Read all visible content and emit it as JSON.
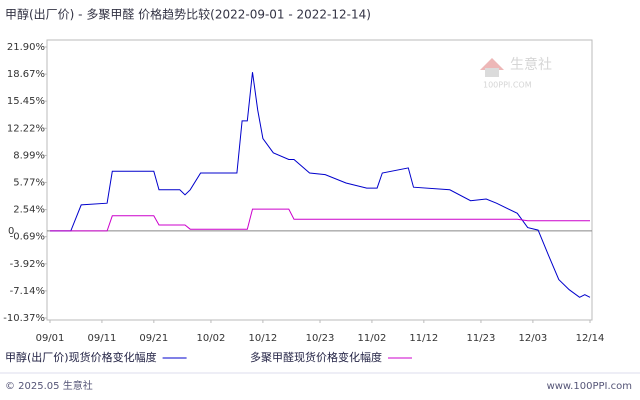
{
  "chart_data": {
    "type": "line",
    "title": "甲醇(出厂价) - 多聚甲醛 价格趋势比较(2022-09-01 - 2022-12-14)",
    "x": [
      "2022-09-01",
      "2022-09-05",
      "2022-09-07",
      "2022-09-12",
      "2022-09-13",
      "2022-09-21",
      "2022-09-22",
      "2022-09-26",
      "2022-09-27",
      "2022-09-28",
      "2022-09-30",
      "2022-10-07",
      "2022-10-08",
      "2022-10-09",
      "2022-10-10",
      "2022-10-11",
      "2022-10-12",
      "2022-10-14",
      "2022-10-17",
      "2022-10-18",
      "2022-10-21",
      "2022-10-24",
      "2022-10-28",
      "2022-11-01",
      "2022-11-03",
      "2022-11-04",
      "2022-11-09",
      "2022-11-10",
      "2022-11-17",
      "2022-11-21",
      "2022-11-24",
      "2022-11-26",
      "2022-11-30",
      "2022-12-02",
      "2022-12-04",
      "2022-12-06",
      "2022-12-08",
      "2022-12-10",
      "2022-12-12",
      "2022-12-13",
      "2022-12-14"
    ],
    "series": [
      {
        "name": "甲醇(出厂价)现货价格变化幅度",
        "color": "#0000cc",
        "values": [
          0,
          0,
          3.1,
          3.3,
          7.1,
          7.1,
          4.9,
          4.9,
          4.3,
          4.9,
          6.9,
          6.9,
          13.1,
          13.1,
          18.9,
          14.4,
          11.0,
          9.3,
          8.5,
          8.5,
          6.9,
          6.7,
          5.7,
          5.1,
          5.1,
          6.9,
          7.5,
          5.2,
          4.9,
          3.6,
          3.8,
          3.3,
          2.1,
          0.4,
          0.1,
          -2.9,
          -5.8,
          -7.0,
          -7.9,
          -7.6,
          -7.9
        ]
      },
      {
        "name": "多聚甲醛现货价格变化幅度",
        "color": "#cc00cc",
        "values": [
          0,
          0,
          0,
          0,
          1.8,
          1.8,
          0.7,
          0.7,
          0.7,
          0.2,
          0.2,
          0.2,
          0.2,
          0.2,
          2.6,
          2.6,
          2.6,
          2.6,
          2.6,
          1.4,
          1.4,
          1.4,
          1.4,
          1.4,
          1.4,
          1.4,
          1.4,
          1.4,
          1.4,
          1.4,
          1.4,
          1.4,
          1.4,
          1.2,
          1.2,
          1.2,
          1.2,
          1.2,
          1.2,
          1.2,
          1.2
        ]
      }
    ],
    "xlim": [
      "2022-09-01",
      "2022-12-14"
    ],
    "xticks": [
      {
        "value": "2022-09-01",
        "label": "09/01"
      },
      {
        "value": "2022-09-11",
        "label": "09/11"
      },
      {
        "value": "2022-09-21",
        "label": "09/21"
      },
      {
        "value": "2022-10-02",
        "label": "10/02"
      },
      {
        "value": "2022-10-12",
        "label": "10/12"
      },
      {
        "value": "2022-10-23",
        "label": "10/23"
      },
      {
        "value": "2022-11-02",
        "label": "11/02"
      },
      {
        "value": "2022-11-12",
        "label": "11/12"
      },
      {
        "value": "2022-11-23",
        "label": "11/23"
      },
      {
        "value": "2022-12-03",
        "label": "12/03"
      },
      {
        "value": "2022-12-14",
        "label": "12/14"
      }
    ],
    "ylim": [
      -10.37,
      21.9
    ],
    "yticks": [
      {
        "value": 21.9,
        "label": "21.90%"
      },
      {
        "value": 18.67,
        "label": "18.67%"
      },
      {
        "value": 15.45,
        "label": "15.45%"
      },
      {
        "value": 12.22,
        "label": "12.22%"
      },
      {
        "value": 8.99,
        "label": "8.99%"
      },
      {
        "value": 5.77,
        "label": "5.77%"
      },
      {
        "value": 2.54,
        "label": "2.54%"
      },
      0,
      {
        "value": -0.69,
        "label": "-0.69%"
      },
      {
        "value": -3.92,
        "label": "-3.92%"
      },
      {
        "value": -7.14,
        "label": "-7.14%"
      },
      {
        "value": -10.37,
        "label": "-10.37%"
      }
    ]
  },
  "watermark": {
    "name": "生意社",
    "url": "100PPI.COM"
  },
  "footer": {
    "copyright": "© 2025.05 生意社",
    "site": "www.100PPI.com"
  }
}
